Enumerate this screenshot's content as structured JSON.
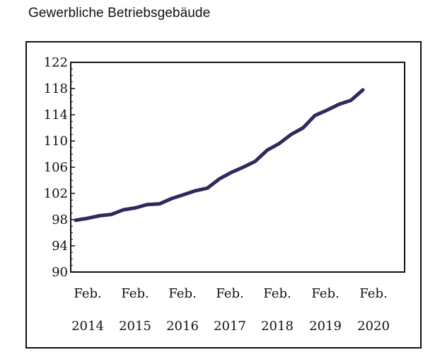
{
  "title": "Gewerbliche Betriebsgebäude",
  "chart_data": {
    "type": "line",
    "title": "Gewerbliche Betriebsgebäude",
    "ylim": [
      90,
      122
    ],
    "yticks": [
      90,
      94,
      98,
      102,
      106,
      110,
      114,
      118,
      122
    ],
    "xticks": [
      {
        "line1": "Feb.",
        "line2": "2014",
        "idx": 0
      },
      {
        "line1": "Feb.",
        "line2": "2015",
        "idx": 4
      },
      {
        "line1": "Feb.",
        "line2": "2016",
        "idx": 8
      },
      {
        "line1": "Feb.",
        "line2": "2017",
        "idx": 12
      },
      {
        "line1": "Feb.",
        "line2": "2018",
        "idx": 16
      },
      {
        "line1": "Feb.",
        "line2": "2019",
        "idx": 20
      },
      {
        "line1": "Feb.",
        "line2": "2020",
        "idx": 24
      }
    ],
    "series": [
      {
        "color": "#2e2a5e",
        "values": [
          97.9,
          98.2,
          98.6,
          98.8,
          99.5,
          99.8,
          100.3,
          100.4,
          101.2,
          101.8,
          102.4,
          102.8,
          104.2,
          105.2,
          106.0,
          106.9,
          108.6,
          109.6,
          111.0,
          112.0,
          113.9,
          114.7,
          115.6,
          116.2,
          117.8
        ]
      }
    ],
    "grid": false,
    "legend": "none"
  }
}
